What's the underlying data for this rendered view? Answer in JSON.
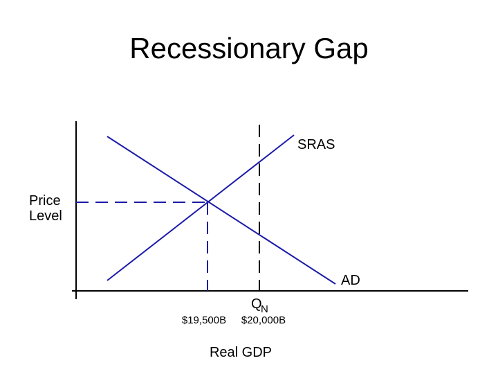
{
  "title": "Recessionary Gap",
  "y_axis_label": [
    "Price",
    "Level"
  ],
  "x_axis_label": "Real GDP",
  "curves": {
    "sras": "SRAS",
    "ad": "AD"
  },
  "potential_output": {
    "symbol": "Q",
    "subscript": "N"
  },
  "x_labels": [
    "$19,500B",
    "$20,000B"
  ]
}
